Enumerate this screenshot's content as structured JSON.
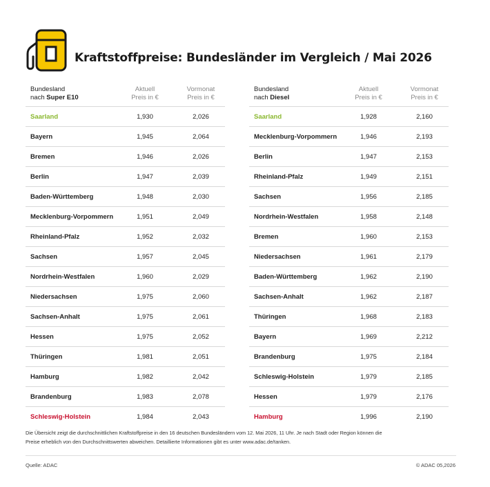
{
  "title": "Kraftstoffpreise: Bundesländer im Vergleich / Mai 2026",
  "colors": {
    "accent_yellow": "#f7c600",
    "best_green": "#8ab82f",
    "worst_red": "#c8102e"
  },
  "left_table": {
    "col1_line1": "Bundesland",
    "col1_prefix": "nach ",
    "col1_fuel": "Super E10",
    "col2_line1": "Aktuell",
    "col2_line2": "Preis in €",
    "col3_line1": "Vormonat",
    "col3_line2": "Preis in €",
    "rows": [
      {
        "name": "Saarland",
        "current": "1,930",
        "previous": "2,026"
      },
      {
        "name": "Bayern",
        "current": "1,945",
        "previous": "2,064"
      },
      {
        "name": "Bremen",
        "current": "1,946",
        "previous": "2,026"
      },
      {
        "name": "Berlin",
        "current": "1,947",
        "previous": "2,039"
      },
      {
        "name": "Baden-Württemberg",
        "current": "1,948",
        "previous": "2,030"
      },
      {
        "name": "Mecklenburg-Vorpommern",
        "current": "1,951",
        "previous": "2,049"
      },
      {
        "name": "Rheinland-Pfalz",
        "current": "1,952",
        "previous": "2,032"
      },
      {
        "name": "Sachsen",
        "current": "1,957",
        "previous": "2,045"
      },
      {
        "name": "Nordrhein-Westfalen",
        "current": "1,960",
        "previous": "2,029"
      },
      {
        "name": "Niedersachsen",
        "current": "1,975",
        "previous": "2,060"
      },
      {
        "name": "Sachsen-Anhalt",
        "current": "1,975",
        "previous": "2,061"
      },
      {
        "name": "Hessen",
        "current": "1,975",
        "previous": "2,052"
      },
      {
        "name": "Thüringen",
        "current": "1,981",
        "previous": "2,051"
      },
      {
        "name": "Hamburg",
        "current": "1,982",
        "previous": "2,042"
      },
      {
        "name": "Brandenburg",
        "current": "1,983",
        "previous": "2,078"
      },
      {
        "name": "Schleswig-Holstein",
        "current": "1,984",
        "previous": "2,043"
      }
    ]
  },
  "right_table": {
    "col1_line1": "Bundesland",
    "col1_prefix": "nach ",
    "col1_fuel": "Diesel",
    "col2_line1": "Aktuell",
    "col2_line2": "Preis in €",
    "col3_line1": "Vormonat",
    "col3_line2": "Preis in €",
    "rows": [
      {
        "name": "Saarland",
        "current": "1,928",
        "previous": "2,160"
      },
      {
        "name": "Mecklenburg-Vorpommern",
        "current": "1,946",
        "previous": "2,193"
      },
      {
        "name": "Berlin",
        "current": "1,947",
        "previous": "2,153"
      },
      {
        "name": "Rheinland-Pfalz",
        "current": "1,949",
        "previous": "2,151"
      },
      {
        "name": "Sachsen",
        "current": "1,956",
        "previous": "2,185"
      },
      {
        "name": "Nordrhein-Westfalen",
        "current": "1,958",
        "previous": "2,148"
      },
      {
        "name": "Bremen",
        "current": "1,960",
        "previous": "2,153"
      },
      {
        "name": "Niedersachsen",
        "current": "1,961",
        "previous": "2,179"
      },
      {
        "name": "Baden-Württemberg",
        "current": "1,962",
        "previous": "2,190"
      },
      {
        "name": "Sachsen-Anhalt",
        "current": "1,962",
        "previous": "2,187"
      },
      {
        "name": "Thüringen",
        "current": "1,968",
        "previous": "2,183"
      },
      {
        "name": "Bayern",
        "current": "1,969",
        "previous": "2,212"
      },
      {
        "name": "Brandenburg",
        "current": "1,975",
        "previous": "2,184"
      },
      {
        "name": "Schleswig-Holstein",
        "current": "1,979",
        "previous": "2,185"
      },
      {
        "name": "Hessen",
        "current": "1,979",
        "previous": "2,176"
      },
      {
        "name": "Hamburg",
        "current": "1,996",
        "previous": "2,190"
      }
    ]
  },
  "note_line1": "Die Übersicht zeigt die durchschnittlichen Kraftstoffpreise in den 16 deutschen Bundesländern vom 12. Mai 2026, 11 Uhr. Je nach Stadt oder Region können die",
  "note_line2": "Preise erheblich von den Durchschnittswerten abweichen. Detaillierte Informationen gibt es unter www.adac.de/tanken.",
  "source": "Quelle: ADAC",
  "copyright": "© ADAC 05,2026",
  "icon": "fuel-pump-icon"
}
